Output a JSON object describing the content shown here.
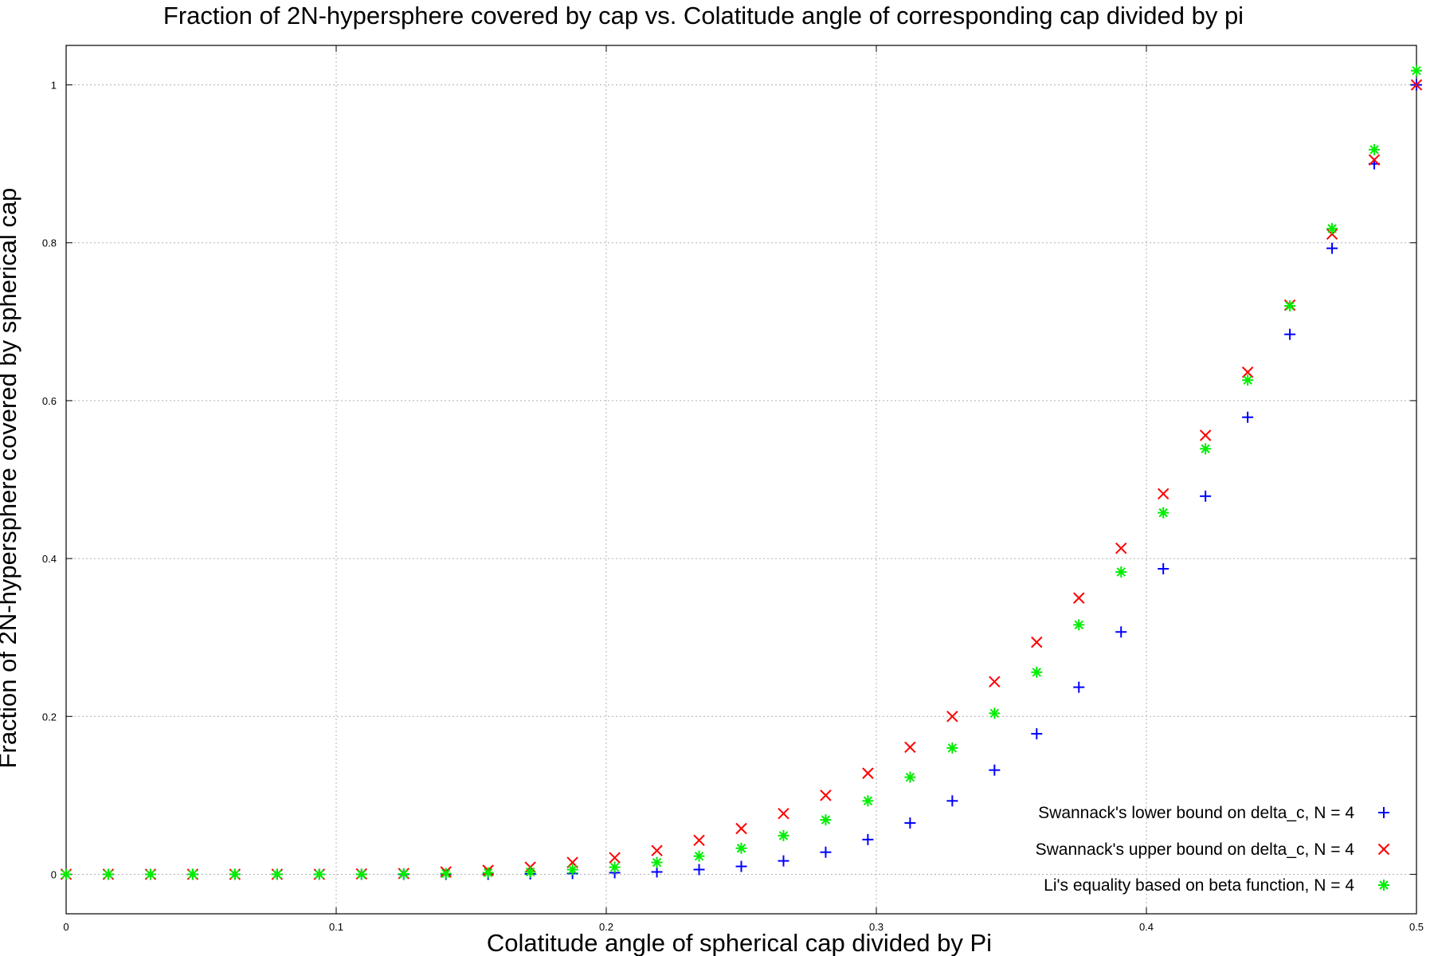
{
  "chart_data": {
    "type": "scatter",
    "title": "Fraction of 2N-hypersphere covered by cap vs. Colatitude angle of corresponding cap divided by pi",
    "xlabel": "Colatitude angle of spherical cap divided by Pi",
    "ylabel": "Fraction of 2N-hypersphere covered by spherical cap",
    "xlim": [
      0,
      0.5
    ],
    "ylim": [
      -0.05,
      1.05
    ],
    "xticks": [
      0,
      0.1,
      0.2,
      0.3,
      0.4,
      0.5
    ],
    "xtick_labels": [
      "0",
      "0.1",
      "0.2",
      "0.3",
      "0.4",
      "0.5"
    ],
    "yticks": [
      0,
      0.2,
      0.4,
      0.6,
      0.8,
      1
    ],
    "ytick_labels": [
      "0",
      "0.2",
      "0.4",
      "0.6",
      "0.8",
      "1"
    ],
    "grid": true,
    "legend_position": "bottom-right",
    "x": [
      0,
      0.015625,
      0.03125,
      0.046875,
      0.0625,
      0.078125,
      0.09375,
      0.109375,
      0.125,
      0.140625,
      0.15625,
      0.171875,
      0.1875,
      0.203125,
      0.21875,
      0.234375,
      0.25,
      0.265625,
      0.28125,
      0.296875,
      0.3125,
      0.328125,
      0.34375,
      0.359375,
      0.375,
      0.390625,
      0.40625,
      0.421875,
      0.4375,
      0.453125,
      0.46875,
      0.484375,
      0.5
    ],
    "series": [
      {
        "name": "Swannack's lower bound on delta_c, N = 4",
        "marker": "plus",
        "color": "#0000ff",
        "values": [
          0,
          0,
          0,
          0,
          0,
          0,
          0,
          0,
          0,
          0,
          0,
          0.0005,
          0.001,
          0.002,
          0.003,
          0.006,
          0.01,
          0.017,
          0.028,
          0.044,
          0.065,
          0.093,
          0.132,
          0.178,
          0.237,
          0.307,
          0.387,
          0.479,
          0.579,
          0.684,
          0.793,
          0.9,
          1.0
        ]
      },
      {
        "name": "Swannack's upper bound on delta_c, N = 4",
        "marker": "cross",
        "color": "#ff0000",
        "values": [
          0,
          0,
          0,
          0,
          0,
          0,
          0,
          0.0005,
          0.001,
          0.003,
          0.005,
          0.009,
          0.015,
          0.021,
          0.03,
          0.043,
          0.058,
          0.077,
          0.1,
          0.128,
          0.161,
          0.2,
          0.244,
          0.294,
          0.35,
          0.413,
          0.482,
          0.556,
          0.636,
          0.721,
          0.811,
          0.905,
          1.0
        ]
      },
      {
        "name": "Li's equality based on beta function, N = 4",
        "marker": "star",
        "color": "#00ee00",
        "values": [
          0,
          0,
          0,
          0,
          0,
          0,
          0,
          0,
          0.0005,
          0.001,
          0.002,
          0.003,
          0.006,
          0.009,
          0.015,
          0.023,
          0.033,
          0.049,
          0.069,
          0.093,
          0.123,
          0.16,
          0.204,
          0.256,
          0.316,
          0.383,
          0.458,
          0.539,
          0.626,
          0.72,
          0.818,
          0.918,
          1.018
        ]
      }
    ]
  }
}
